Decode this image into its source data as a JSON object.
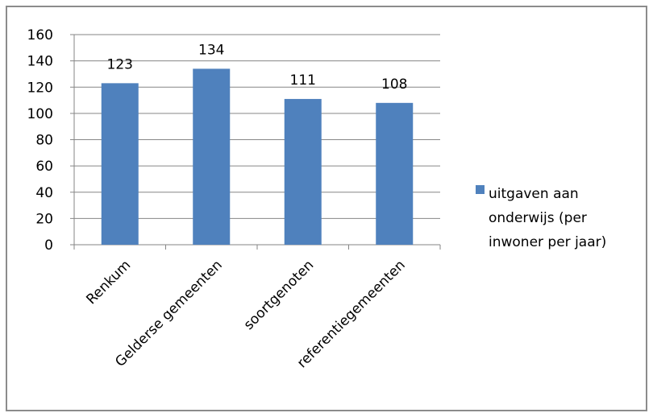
{
  "colors": {
    "bar": "#4F81BD",
    "grid": "#868686",
    "axis": "#868686",
    "frame": "#8c8c8c"
  },
  "chart_data": {
    "type": "bar",
    "title": "",
    "xlabel": "",
    "ylabel": "",
    "categories": [
      "Renkum",
      "Gelderse gemeenten",
      "soortgenoten",
      "referentiegemeenten"
    ],
    "series": [
      {
        "name": "uitgaven aan onderwijs (per inwoner per jaar)",
        "values": [
          123,
          134,
          111,
          108
        ]
      }
    ],
    "data_labels": [
      "123",
      "134",
      "111",
      "108"
    ],
    "ylim": [
      0,
      160
    ],
    "yticks": [
      0,
      20,
      40,
      60,
      80,
      100,
      120,
      140,
      160
    ],
    "grid": true,
    "legend": {
      "position": "right",
      "lines": [
        "uitgaven aan",
        "onderwijs (per",
        "inwoner per jaar)"
      ]
    }
  }
}
